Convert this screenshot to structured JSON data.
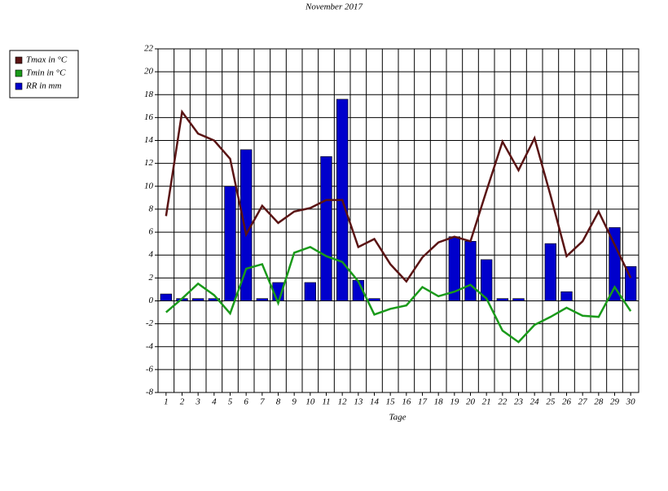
{
  "chart_data": {
    "type": "bar-line",
    "title": "November 2017",
    "xlabel": "Tage",
    "categories": [
      "1",
      "2",
      "3",
      "4",
      "5",
      "6",
      "7",
      "8",
      "9",
      "10",
      "11",
      "12",
      "13",
      "14",
      "15",
      "16",
      "17",
      "18",
      "19",
      "20",
      "21",
      "22",
      "23",
      "24",
      "25",
      "26",
      "27",
      "28",
      "29",
      "30"
    ],
    "series": [
      {
        "name": "Tmax in °C",
        "type": "line",
        "color": "#5a1414",
        "values": [
          7.4,
          16.5,
          14.6,
          14.0,
          12.4,
          5.8,
          8.3,
          6.8,
          7.8,
          8.1,
          8.8,
          8.8,
          4.7,
          5.4,
          3.2,
          1.7,
          3.8,
          5.1,
          5.6,
          5.2,
          9.6,
          13.9,
          11.4,
          14.2,
          9.2,
          3.9,
          5.2,
          7.8,
          4.9,
          2.0
        ]
      },
      {
        "name": "Tmin in °C",
        "type": "line",
        "color": "#1a9a1a",
        "values": [
          -1.0,
          0.2,
          1.5,
          0.5,
          -1.1,
          2.8,
          3.2,
          -0.2,
          4.2,
          4.7,
          3.9,
          3.4,
          1.7,
          -1.2,
          -0.7,
          -0.4,
          1.2,
          0.4,
          0.8,
          1.4,
          0.2,
          -2.6,
          -3.6,
          -2.1,
          -1.4,
          -0.6,
          -1.3,
          -1.4,
          1.2,
          -0.9
        ]
      },
      {
        "name": "RR in mm",
        "type": "bar",
        "color": "#0000cc",
        "values": [
          0.6,
          0.2,
          0.2,
          0.2,
          10.0,
          13.2,
          0.2,
          1.6,
          0,
          1.6,
          12.6,
          17.6,
          1.8,
          0.2,
          0,
          0,
          0,
          0,
          5.6,
          5.2,
          3.6,
          0.2,
          0.2,
          0,
          5.0,
          0.8,
          0,
          0,
          6.4,
          3.0
        ]
      }
    ],
    "ylim": [
      -8,
      22
    ],
    "yticks": [
      -8,
      -6,
      -4,
      -2,
      0,
      2,
      4,
      6,
      8,
      10,
      12,
      14,
      16,
      18,
      20,
      22
    ],
    "grid": true
  }
}
